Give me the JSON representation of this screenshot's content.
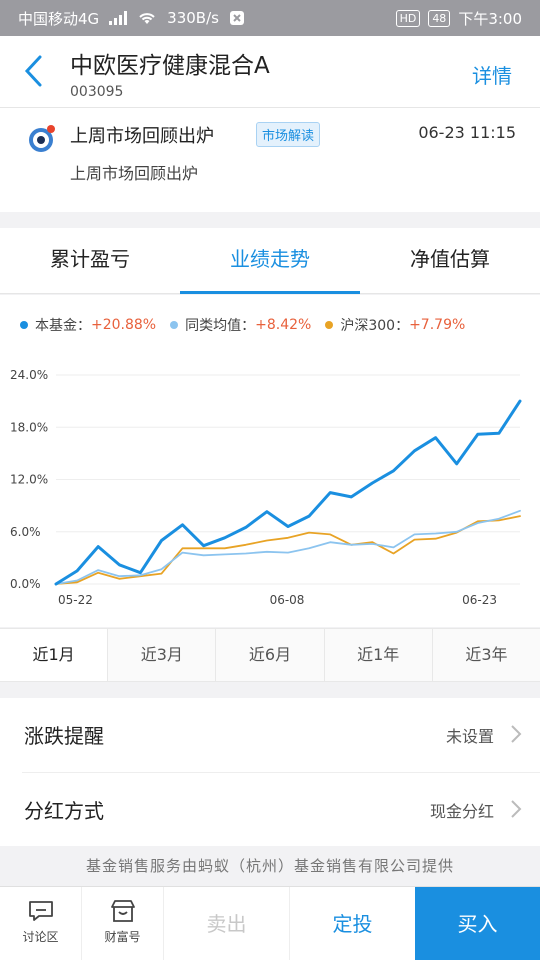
{
  "status_bar": {
    "carrier": "中国移动4G",
    "network_tag": "4G",
    "speed": "330B/s",
    "hd": "HD",
    "battery": "48",
    "time": "下午3:00"
  },
  "header": {
    "title": "中欧医疗健康混合A",
    "code": "003095",
    "detail_label": "详情"
  },
  "news": {
    "title": "上周市场回顾出炉",
    "tag": "市场解读",
    "time": "06-23 11:15",
    "subtitle": "上周市场回顾出炉"
  },
  "tabs": [
    {
      "label": "累计盈亏"
    },
    {
      "label": "业绩走势"
    },
    {
      "label": "净值估算"
    }
  ],
  "legend": [
    {
      "name": "本基金：",
      "value": "+20.88%",
      "color": "#1a8fe0"
    },
    {
      "name": "同类均值：",
      "value": "+8.42%",
      "color": "#8cc4ef"
    },
    {
      "name": "沪深300：",
      "value": "+7.79%",
      "color": "#e8a325"
    }
  ],
  "chart_data": {
    "type": "line",
    "y_ticks": [
      "24.0%",
      "18.0%",
      "12.0%",
      "6.0%",
      "0.0%"
    ],
    "ylim": [
      0,
      24
    ],
    "x_ticks": [
      "05-22",
      "06-08",
      "06-23"
    ],
    "grid": true,
    "series": [
      {
        "name": "本基金",
        "color": "#1a8fe0",
        "values": [
          0.0,
          1.5,
          4.3,
          2.2,
          1.3,
          5.0,
          6.8,
          4.4,
          5.3,
          6.5,
          8.3,
          6.6,
          7.8,
          10.5,
          10.0,
          11.6,
          13.0,
          15.3,
          16.8,
          13.8,
          17.2,
          17.3,
          21.0
        ]
      },
      {
        "name": "同类均值",
        "color": "#8cc4ef",
        "values": [
          0.0,
          0.4,
          1.6,
          0.9,
          1.0,
          1.7,
          3.6,
          3.3,
          3.4,
          3.5,
          3.7,
          3.6,
          4.1,
          4.8,
          4.5,
          4.6,
          4.2,
          5.7,
          5.8,
          6.0,
          7.0,
          7.5,
          8.4
        ]
      },
      {
        "name": "沪深300",
        "color": "#e8a325",
        "values": [
          0.0,
          0.2,
          1.3,
          0.6,
          0.9,
          1.2,
          4.1,
          4.1,
          4.1,
          4.5,
          5.0,
          5.3,
          5.9,
          5.7,
          4.5,
          4.8,
          3.5,
          5.1,
          5.2,
          5.9,
          7.2,
          7.3,
          7.8
        ]
      }
    ]
  },
  "periods": [
    {
      "label": "近1月"
    },
    {
      "label": "近3月"
    },
    {
      "label": "近6月"
    },
    {
      "label": "近1年"
    },
    {
      "label": "近3年"
    }
  ],
  "settings": {
    "alert_label": "涨跌提醒",
    "alert_value": "未设置",
    "dividend_label": "分红方式",
    "dividend_value": "现金分红"
  },
  "provider": "基金销售服务由蚂蚁（杭州）基金销售有限公司提供",
  "bottom_bar": {
    "discuss_label": "讨论区",
    "wealth_label": "财富号",
    "sell_label": "卖出",
    "fixed_label": "定投",
    "buy_label": "买入"
  }
}
